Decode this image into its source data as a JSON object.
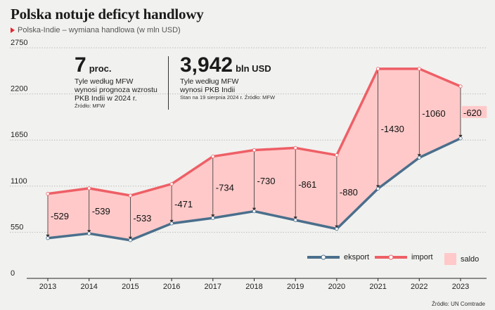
{
  "header": {
    "title": "Polska notuje deficyt handlowy",
    "subtitle": "Polska-Indie – wymiana handlowa (w mln USD)"
  },
  "stats": [
    {
      "value": "7",
      "unit": "proc.",
      "lines": [
        "Tyle według MFW",
        "wynosi prognoza wzrostu",
        "PKB Indii w 2024 r."
      ],
      "source": "Źródło: MFW"
    },
    {
      "value": "3,942",
      "unit": "bln USD",
      "lines": [
        "Tyle według MFW",
        "wynosi PKB Indii"
      ],
      "source": "Stan na 19 sierpnia 2024 r. Źródło: MFW"
    }
  ],
  "source": "Źródło: UN Comtrade",
  "chart_data": {
    "type": "line",
    "title": "Polska notuje deficyt handlowy",
    "subtitle": "Polska-Indie – wymiana handlowa (w mln USD)",
    "categories": [
      "2013",
      "2014",
      "2015",
      "2016",
      "2017",
      "2018",
      "2019",
      "2020",
      "2021",
      "2022",
      "2023"
    ],
    "yticks": [
      0,
      550,
      1100,
      1650,
      2200,
      2750
    ],
    "ylim": [
      0,
      2750
    ],
    "grid": true,
    "legend_position": "bottom-right",
    "series": [
      {
        "name": "eksport",
        "color": "#4a6f8c",
        "values": [
          480,
          535,
          455,
          655,
          720,
          800,
          695,
          590,
          1070,
          1440,
          1670
        ]
      },
      {
        "name": "import",
        "color": "#ee5f66",
        "values": [
          1009,
          1074,
          988,
          1126,
          1454,
          1530,
          1556,
          1470,
          2500,
          2500,
          2290
        ]
      }
    ],
    "saldo": {
      "name": "saldo",
      "color": "#ffc9c9",
      "labels": [
        "-529",
        "-539",
        "-533",
        "-471",
        "-734",
        "-730",
        "-861",
        "-880",
        "-1430",
        "-1060",
        "-620"
      ]
    }
  }
}
